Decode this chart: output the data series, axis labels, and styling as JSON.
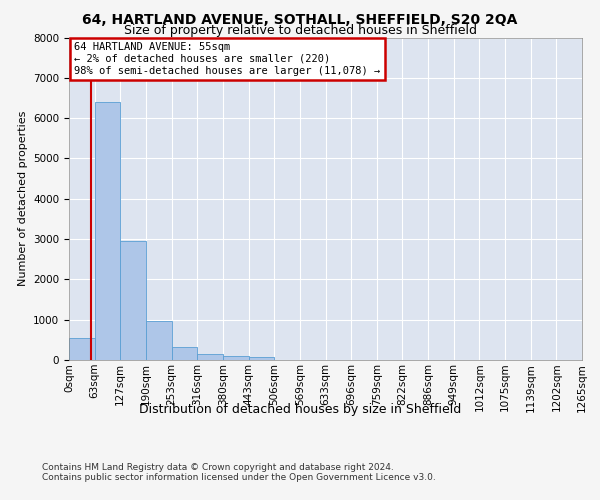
{
  "title1": "64, HARTLAND AVENUE, SOTHALL, SHEFFIELD, S20 2QA",
  "title2": "Size of property relative to detached houses in Sheffield",
  "xlabel": "Distribution of detached houses by size in Sheffield",
  "ylabel": "Number of detached properties",
  "footer1": "Contains HM Land Registry data © Crown copyright and database right 2024.",
  "footer2": "Contains public sector information licensed under the Open Government Licence v3.0.",
  "bin_labels": [
    "0sqm",
    "63sqm",
    "127sqm",
    "190sqm",
    "253sqm",
    "316sqm",
    "380sqm",
    "443sqm",
    "506sqm",
    "569sqm",
    "633sqm",
    "696sqm",
    "759sqm",
    "822sqm",
    "886sqm",
    "949sqm",
    "1012sqm",
    "1075sqm",
    "1139sqm",
    "1202sqm",
    "1265sqm"
  ],
  "bar_values": [
    550,
    6400,
    2950,
    975,
    330,
    160,
    105,
    65,
    0,
    0,
    0,
    0,
    0,
    0,
    0,
    0,
    0,
    0,
    0,
    0
  ],
  "bar_color": "#aec6e8",
  "bar_edge_color": "#5a9fd4",
  "annotation_title": "64 HARTLAND AVENUE: 55sqm",
  "annotation_line1": "← 2% of detached houses are smaller (220)",
  "annotation_line2": "98% of semi-detached houses are larger (11,078) →",
  "annotation_box_color": "#ffffff",
  "annotation_box_edge": "#cc0000",
  "ylim": [
    0,
    8000
  ],
  "yticks": [
    0,
    1000,
    2000,
    3000,
    4000,
    5000,
    6000,
    7000,
    8000
  ],
  "fig_bg_color": "#f5f5f5",
  "plot_bg_color": "#dde4f0",
  "grid_color": "#ffffff",
  "red_line_color": "#cc0000",
  "title1_fontsize": 10,
  "title2_fontsize": 9,
  "xlabel_fontsize": 9,
  "ylabel_fontsize": 8,
  "tick_fontsize": 7.5,
  "footer_fontsize": 6.5,
  "annotation_fontsize": 7.5
}
